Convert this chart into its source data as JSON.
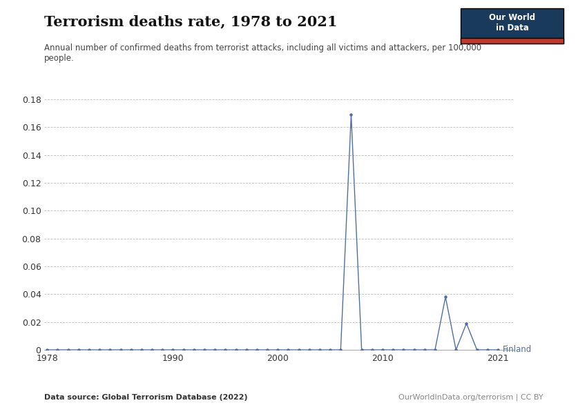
{
  "title": "Terrorism deaths rate, 1978 to 2021",
  "subtitle": "Annual number of confirmed deaths from terrorist attacks, including all victims and attackers, per 100,000\npeople.",
  "datasource": "Data source: Global Terrorism Database (2022)",
  "credit": "OurWorldInData.org/terrorism | CC BY",
  "country_label": "Finland",
  "line_color": "#4e6fa3",
  "marker_color": "#4e6fa3",
  "background_color": "#ffffff",
  "ylim": [
    0,
    0.18
  ],
  "yticks": [
    0,
    0.02,
    0.04,
    0.06,
    0.08,
    0.1,
    0.12,
    0.14,
    0.16,
    0.18
  ],
  "xlim": [
    1978,
    2021
  ],
  "xticks": [
    1978,
    1990,
    2000,
    2010,
    2021
  ],
  "years": [
    1978,
    1979,
    1980,
    1981,
    1982,
    1983,
    1984,
    1985,
    1986,
    1987,
    1988,
    1989,
    1990,
    1991,
    1992,
    1993,
    1994,
    1995,
    1996,
    1997,
    1998,
    1999,
    2000,
    2001,
    2002,
    2003,
    2004,
    2005,
    2006,
    2007,
    2008,
    2009,
    2010,
    2011,
    2012,
    2013,
    2014,
    2015,
    2016,
    2017,
    2018,
    2019,
    2020,
    2021
  ],
  "values": [
    0.0,
    0.0,
    0.0,
    0.0,
    0.0,
    0.0,
    0.0,
    0.0,
    0.0,
    0.0,
    0.0,
    0.0,
    0.0,
    0.0,
    0.0,
    0.0,
    0.0,
    0.0,
    0.0,
    0.0,
    0.0,
    0.0,
    0.0,
    0.0,
    0.0,
    0.0,
    0.0,
    0.0,
    0.0,
    0.169,
    0.0,
    0.0,
    0.0,
    0.0,
    0.0,
    0.0,
    0.0,
    0.0,
    0.038,
    0.0,
    0.019,
    0.0,
    0.0,
    0.0
  ],
  "logo_bg": "#1a3a5c",
  "logo_stripe": "#c0392b",
  "logo_text": "Our World\nin Data"
}
